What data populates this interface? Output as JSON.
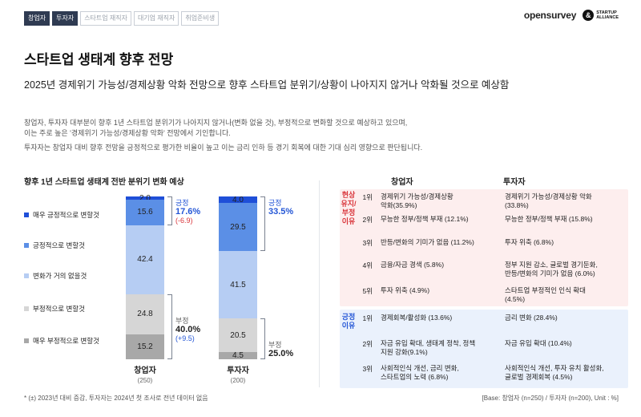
{
  "tabs": [
    {
      "label": "창업자",
      "active": true
    },
    {
      "label": "투자자",
      "active": true
    },
    {
      "label": "스타트업 재직자",
      "active": false
    },
    {
      "label": "대기업 재직자",
      "active": false
    },
    {
      "label": "취업준비생",
      "active": false
    }
  ],
  "brand": {
    "opensurvey": "opensurvey",
    "sa_line1": "STARTUP",
    "sa_line2": "ALLIANCE",
    "sa_mark": "&"
  },
  "title": "스타트업 생태계 향후 전망",
  "subtitle": "2025년 경제위기 가능성/경제상황 악화 전망으로 향후 스타트업 분위기/상황이 나아지지 않거나 악화될 것으로 예상함",
  "desc1_line1": "창업자, 투자자 대부분이 향후 1년 스타트업 분위기가 나아지지 않거나(변화 없을 것), 부정적으로 변화할 것으로 예상하고 있으며,",
  "desc1_line2": "이는 주로 높은 '경제위기 가능성/경제상황 악화' 전망에서 기인합니다.",
  "desc2": "투자자는 창업자 대비 향후 전망을 긍정적으로 평가한 비율이 높고 이는 금리 인하 등 경기 회복에 대한 기대 심리 영향으로 판단됩니다.",
  "section_title": "향후 1년 스타트업 생태계 전반 분위기 변화 예상",
  "chart_data": {
    "type": "bar",
    "stacked": true,
    "categories": [
      "창업자",
      "투자자"
    ],
    "category_n": [
      "(250)",
      "(200)"
    ],
    "series": [
      {
        "name": "매우 긍정적으로 변할것",
        "values": [
          2.0,
          4.0
        ],
        "color": "#1f4fd8"
      },
      {
        "name": "긍정적으로 변할것",
        "values": [
          15.6,
          29.5
        ],
        "color": "#5b8fe6"
      },
      {
        "name": "변화가 거의 없을것",
        "values": [
          42.4,
          41.5
        ],
        "color": "#b6cdf3"
      },
      {
        "name": "부정적으로 변할것",
        "values": [
          24.8,
          20.5
        ],
        "color": "#d6d6d6"
      },
      {
        "name": "매우 부정적으로 변할것",
        "values": [
          15.2,
          4.5
        ],
        "color": "#a8a8a8"
      }
    ],
    "labels": [
      [
        "2.0",
        "15.6",
        "42.4",
        "24.8",
        "15.2"
      ],
      [
        "4.0",
        "29.5",
        "41.5",
        "20.5",
        "4.5"
      ]
    ],
    "summaries": [
      {
        "pos_label": "긍정",
        "pos_value": "17.6%",
        "pos_delta": "(-6.9)",
        "neg_label": "부정",
        "neg_value": "40.0%",
        "neg_delta": "(+9.5)"
      },
      {
        "pos_label": "긍정",
        "pos_value": "33.5%",
        "pos_delta": "",
        "neg_label": "부정",
        "neg_value": "25.0%",
        "neg_delta": ""
      }
    ],
    "legend_position": "left"
  },
  "reasons": {
    "col_founder": "창업자",
    "col_investor": "투자자",
    "neg_label": "현상\n유지/\n부정\n이유",
    "pos_label": "긍정\n이유",
    "neg_rows": [
      {
        "rank": "1위",
        "founder": "경제위기 가능성/경제상황\n악화(35.9%)",
        "investor": "경제위기 가능성/경제상황 악화\n(33.8%)"
      },
      {
        "rank": "2위",
        "founder": "무능한 정부/정책 부재 (12.1%)",
        "investor": "무능한 정부/정책 부재 (15.8%)"
      },
      {
        "rank": "3위",
        "founder": "반등/변화의 기미가 없음 (11.2%)",
        "investor": "투자 위축 (6.8%)"
      },
      {
        "rank": "4위",
        "founder": "금융/자금 경색 (5.8%)",
        "investor": "정부 지원 감소, 글로벌 경기둔화,\n반등/변화의 기미가 없음 (6.0%)"
      },
      {
        "rank": "5위",
        "founder": "투자 위축 (4.9%)",
        "investor": "스타트업 부정적인 인식 확대\n(4.5%)"
      }
    ],
    "pos_rows": [
      {
        "rank": "1위",
        "founder": "경제회복/활성화 (13.6%)",
        "investor": "금리 변화 (28.4%)"
      },
      {
        "rank": "2위",
        "founder": "자금 유입 확대, 생태계 정착, 정책\n지원 강화(9.1%)",
        "investor": "자금 유입 확대 (10.4%)"
      },
      {
        "rank": "3위",
        "founder": "사회적인식 개선, 금리 변화,\n스타트업의 노력 (6.8%)",
        "investor": "사회적인식 개선, 투자 유치 활성화,\n글로벌 경제회복 (4.5%)"
      }
    ]
  },
  "footer_left": "* (±) 2023년 대비 증감, 투자자는 2024년 첫 조사로 전년 데이터 없음",
  "footer_right": "[Base: 창업자 (n=250) / 투자자 (n=200), Unit : %]"
}
